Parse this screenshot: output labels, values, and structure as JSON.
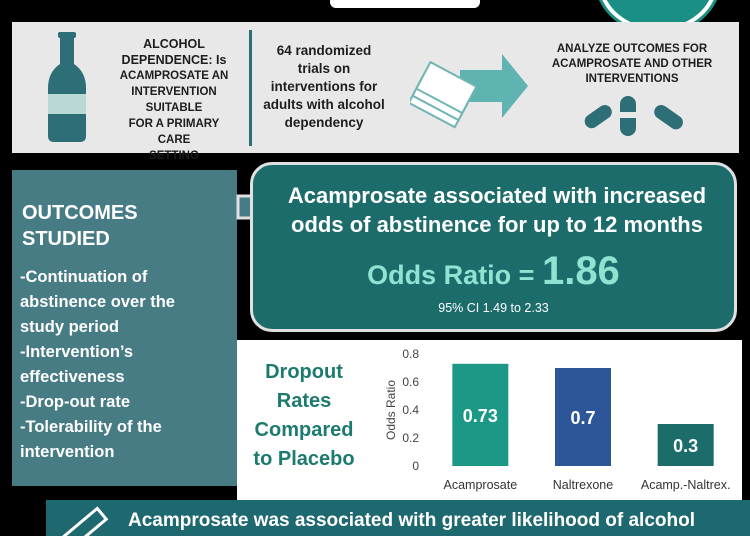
{
  "header": {
    "issue_text": "ALCOHOL DEPENDENCE: Is ACAMPROSATE AN INTERVENTION SUITABLE FOR A PRIMARY CARE SETTING",
    "issue_line1": "ALCOHOL",
    "issue_line2": "DEPENDENCE: Is",
    "issue_line3": "ACAMPROSATE AN",
    "issue_line4": "INTERVENTION SUITABLE",
    "issue_line5": "FOR A PRIMARY CARE",
    "issue_line6": "SETTING",
    "trials_line1": "64 randomized",
    "trials_line2": "trials on",
    "trials_line3": "interventions for",
    "trials_line4": "adults with alcohol",
    "trials_line5": "dependency",
    "analyze_line1": "ANALYZE OUTCOMES FOR",
    "analyze_line2": "ACAMPROSATE AND OTHER",
    "analyze_line3": "INTERVENTIONS"
  },
  "outcomes": {
    "title_line1": "OUTCOMES",
    "title_line2": "STUDIED",
    "items": [
      [
        "-Continuation of",
        "abstinence over the",
        " study period"
      ],
      [
        "-Intervention’s",
        " effectiveness"
      ],
      [
        "-Drop-out rate"
      ],
      [
        "-Tolerability of the",
        " intervention"
      ]
    ]
  },
  "result": {
    "headline_line1": "Acamprosate associated with increased",
    "headline_line2": "odds of abstinence for up to 12 months",
    "or_label": "Odds Ratio = ",
    "or_value": "1.86",
    "ci": "95% CI 1.49 to 2.33"
  },
  "dropout": {
    "title_line1": "Dropout",
    "title_line2": "Rates",
    "title_line3": "Compared",
    "title_line4": "to Placebo"
  },
  "chart_data": {
    "type": "bar",
    "categories": [
      "Acamprosate",
      "Naltrexone",
      "Acamp.-Naltrex."
    ],
    "values": [
      0.73,
      0.7,
      0.3
    ],
    "data_labels": [
      "0.73",
      "0.7",
      "0.3"
    ],
    "ylabel": "Odds Ratio",
    "xlabel": "",
    "ylim": [
      0,
      0.8
    ],
    "yticks": [
      "0",
      "0.2",
      "0.4",
      "0.6",
      "0.8"
    ],
    "colors": [
      "#1c9986",
      "#2c5697",
      "#1d6c6c"
    ],
    "grid": false
  },
  "conclusion": {
    "line1": "Acamprosate was associated with greater likelihood of alcohol"
  },
  "colors": {
    "teal_dark": "#1d6c6c",
    "teal_panel": "#477c85",
    "accent_text": "#8fe3d1",
    "dropout_title": "#1d7a6f"
  },
  "icons": [
    "bottle-icon",
    "papers-icon",
    "arrow-icon",
    "pills-icon",
    "pencil-icon",
    "badge-circle"
  ]
}
